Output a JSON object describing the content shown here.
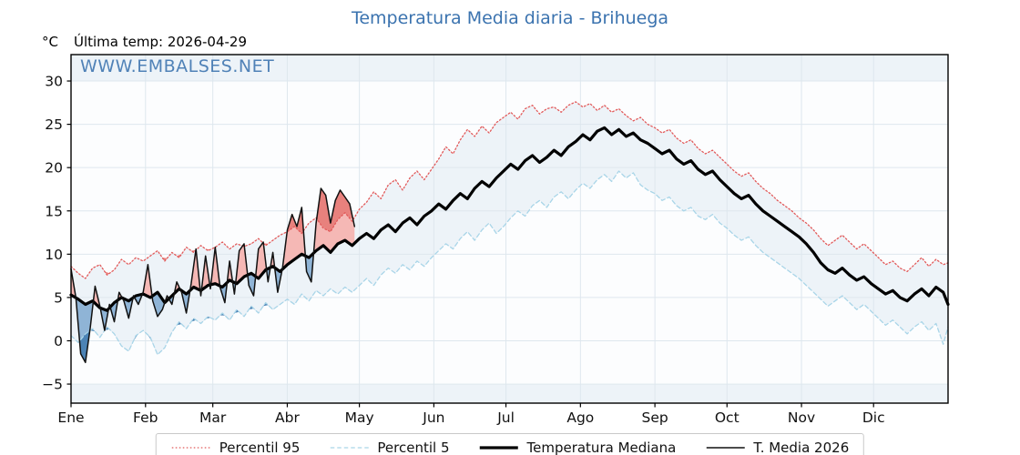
{
  "header": {
    "title": "Temperatura Media diaria - Brihuega",
    "unit_label": "°C",
    "last_temp_label": "Última temp: 2026-04-29"
  },
  "watermark": {
    "text": "WWW.EMBALSES.NET"
  },
  "colors": {
    "title_blue": "#3b73af",
    "axes_band_tint": "#edf3f8",
    "plot_background": "#fcfdfe",
    "gridline": "#dee7ee",
    "spine": "#000000",
    "fill_above_median": "#f5b8b5",
    "fill_above_p95": "#e8817d",
    "fill_below_median": "#8fb4d6",
    "fill_below_p5": "#4c83b5"
  },
  "chart_data": {
    "type": "line",
    "title": "Temperatura Media diaria - Brihuega",
    "xlabel": "",
    "ylabel": "°C",
    "x_unit": "day_of_year",
    "x_range_days": [
      0,
      365
    ],
    "ylim": [
      -7.2,
      33.05
    ],
    "y_ticks": [
      -5,
      0,
      5,
      10,
      15,
      20,
      25,
      30
    ],
    "grid": true,
    "legend_position": "bottom-center",
    "months": [
      "Ene",
      "Feb",
      "Mar",
      "Abr",
      "May",
      "Jun",
      "Jul",
      "Ago",
      "Sep",
      "Oct",
      "Nov",
      "Dic"
    ],
    "month_start_days": [
      0,
      31,
      59,
      90,
      120,
      151,
      181,
      212,
      243,
      273,
      304,
      334
    ],
    "series": [
      {
        "name": "Percentil 95",
        "color": "#e25a5a",
        "style": "dotted",
        "width": 1.3,
        "start_day": 0,
        "step": 3,
        "values": [
          8.6,
          7.8,
          7.2,
          8.4,
          8.8,
          7.6,
          8.2,
          9.4,
          8.8,
          9.6,
          9.2,
          9.8,
          10.4,
          9.2,
          10.2,
          9.6,
          10.8,
          10.2,
          11.0,
          10.4,
          10.8,
          11.4,
          10.6,
          11.2,
          10.9,
          11.2,
          11.8,
          11.0,
          11.6,
          12.2,
          12.6,
          13.2,
          12.4,
          13.6,
          14.2,
          13.0,
          12.6,
          14.0,
          14.8,
          13.8,
          15.2,
          16.0,
          17.2,
          16.4,
          18.0,
          18.6,
          17.4,
          18.8,
          19.6,
          18.6,
          19.8,
          21.0,
          22.4,
          21.6,
          23.2,
          24.4,
          23.6,
          24.8,
          24.0,
          25.2,
          25.8,
          26.4,
          25.6,
          26.8,
          27.2,
          26.2,
          26.8,
          27.0,
          26.4,
          27.2,
          27.6,
          27.0,
          27.4,
          26.6,
          27.2,
          26.4,
          26.8,
          26.0,
          25.4,
          25.8,
          25.0,
          24.6,
          24.0,
          24.4,
          23.4,
          22.8,
          23.2,
          22.2,
          21.6,
          22.0,
          21.2,
          20.4,
          19.6,
          19.0,
          19.4,
          18.4,
          17.6,
          17.0,
          16.2,
          15.6,
          15.0,
          14.2,
          13.6,
          12.8,
          11.8,
          11.0,
          11.6,
          12.2,
          11.4,
          10.6,
          11.2,
          10.4,
          9.6,
          8.8,
          9.2,
          8.4,
          8.0,
          8.8,
          9.6,
          8.6,
          9.4,
          8.8,
          9.0
        ]
      },
      {
        "name": "Percentil 5",
        "color": "#a9d5e8",
        "style": "dashed",
        "width": 1.3,
        "start_day": 0,
        "step": 3,
        "values": [
          0.6,
          -0.2,
          0.8,
          1.4,
          0.4,
          1.6,
          0.8,
          -0.6,
          -1.2,
          0.6,
          1.2,
          0.4,
          -1.6,
          -0.8,
          1.0,
          2.2,
          1.4,
          2.6,
          2.0,
          2.8,
          2.4,
          3.2,
          2.4,
          3.6,
          2.8,
          4.0,
          3.2,
          4.4,
          3.6,
          4.2,
          4.8,
          4.2,
          5.4,
          4.6,
          5.8,
          5.2,
          6.0,
          5.4,
          6.2,
          5.6,
          6.4,
          7.2,
          6.4,
          7.6,
          8.4,
          7.8,
          8.8,
          8.2,
          9.2,
          8.6,
          9.6,
          10.4,
          11.2,
          10.6,
          11.8,
          12.6,
          11.6,
          12.8,
          13.6,
          12.4,
          13.2,
          14.2,
          15.0,
          14.4,
          15.6,
          16.2,
          15.4,
          16.6,
          17.2,
          16.4,
          17.4,
          18.2,
          17.6,
          18.6,
          19.2,
          18.4,
          19.6,
          18.8,
          19.4,
          18.0,
          17.4,
          17.0,
          16.2,
          16.6,
          15.6,
          15.0,
          15.4,
          14.4,
          14.0,
          14.6,
          13.6,
          13.0,
          12.2,
          11.6,
          12.0,
          11.0,
          10.2,
          9.6,
          9.0,
          8.4,
          7.8,
          7.2,
          6.4,
          5.6,
          4.8,
          4.0,
          4.6,
          5.2,
          4.4,
          3.6,
          4.2,
          3.4,
          2.6,
          1.8,
          2.4,
          1.6,
          0.8,
          1.6,
          2.2,
          1.2,
          2.0,
          -0.4,
          1.6
        ]
      },
      {
        "name": "Temperatura Mediana",
        "color": "#000000",
        "style": "solid",
        "width": 3.2,
        "start_day": 0,
        "step": 3,
        "values": [
          5.3,
          4.8,
          4.2,
          4.6,
          3.8,
          3.5,
          4.4,
          5.0,
          4.6,
          5.2,
          5.4,
          5.0,
          5.6,
          4.4,
          5.2,
          6.0,
          5.4,
          6.2,
          5.8,
          6.4,
          6.6,
          6.2,
          7.0,
          6.6,
          7.4,
          7.8,
          7.2,
          8.2,
          8.6,
          8.0,
          8.8,
          9.4,
          10.0,
          9.6,
          10.4,
          11.0,
          10.2,
          11.2,
          11.6,
          11.0,
          11.8,
          12.4,
          11.8,
          12.8,
          13.4,
          12.6,
          13.6,
          14.2,
          13.4,
          14.4,
          15.0,
          15.8,
          15.2,
          16.2,
          17.0,
          16.4,
          17.6,
          18.4,
          17.8,
          18.8,
          19.6,
          20.4,
          19.8,
          20.8,
          21.4,
          20.6,
          21.2,
          22.0,
          21.4,
          22.4,
          23.0,
          23.8,
          23.2,
          24.2,
          24.6,
          23.8,
          24.4,
          23.6,
          24.0,
          23.2,
          22.8,
          22.2,
          21.6,
          22.0,
          21.0,
          20.4,
          20.8,
          19.8,
          19.2,
          19.6,
          18.6,
          17.8,
          17.0,
          16.4,
          16.8,
          15.8,
          15.0,
          14.4,
          13.8,
          13.2,
          12.6,
          12.0,
          11.2,
          10.2,
          9.0,
          8.2,
          7.8,
          8.4,
          7.6,
          7.0,
          7.4,
          6.6,
          6.0,
          5.4,
          5.8,
          5.0,
          4.6,
          5.4,
          6.0,
          5.2,
          6.2,
          5.6,
          4.2
        ]
      },
      {
        "name": "T. Media 2026",
        "color": "#111111",
        "style": "solid",
        "width": 1.5,
        "start_day": 0,
        "step": 2,
        "end_date_label": "2026-04-29",
        "values": [
          8.3,
          5.0,
          -1.5,
          -2.5,
          1.5,
          6.3,
          4.0,
          1.2,
          4.2,
          2.2,
          5.6,
          4.6,
          2.6,
          5.2,
          4.2,
          5.6,
          8.8,
          4.6,
          2.8,
          3.6,
          5.2,
          4.2,
          6.8,
          5.6,
          3.2,
          6.6,
          10.6,
          5.2,
          9.8,
          6.0,
          10.8,
          6.2,
          4.4,
          9.2,
          5.4,
          10.4,
          11.2,
          6.4,
          5.2,
          10.6,
          11.4,
          6.8,
          10.2,
          5.6,
          8.4,
          12.8,
          14.6,
          13.2,
          15.4,
          8.0,
          6.8,
          13.6,
          17.6,
          16.8,
          13.6,
          16.2,
          17.4,
          16.6,
          15.8,
          13.2
        ]
      }
    ]
  }
}
